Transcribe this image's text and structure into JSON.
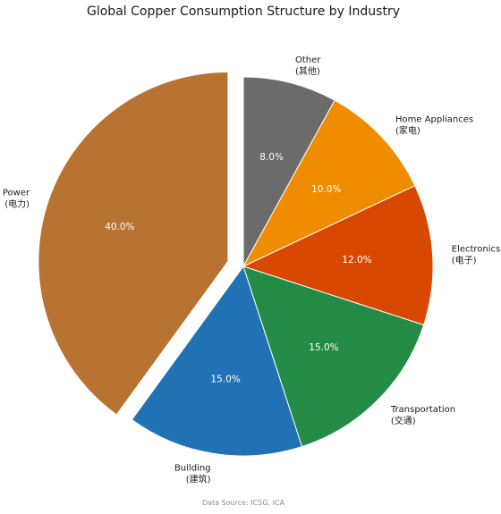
{
  "chart_data": {
    "type": "pie",
    "title": "Global Copper Consumption Structure by Industry",
    "source": "Data Source: ICSG, ICA",
    "slices": [
      {
        "label": "Other",
        "sublabel": "(其他)",
        "value": 8.0,
        "pct_label": "8.0%",
        "color": "#6b6b6b",
        "exploded": false
      },
      {
        "label": "Home Appliances",
        "sublabel": "(家电)",
        "value": 10.0,
        "pct_label": "10.0%",
        "color": "#ef8c00",
        "exploded": false
      },
      {
        "label": "Electronics",
        "sublabel": "(电子)",
        "value": 12.0,
        "pct_label": "12.0%",
        "color": "#d94801",
        "exploded": false
      },
      {
        "label": "Transportation",
        "sublabel": "(交通)",
        "value": 15.0,
        "pct_label": "15.0%",
        "color": "#238b45",
        "exploded": false
      },
      {
        "label": "Building",
        "sublabel": "(建筑)",
        "value": 15.0,
        "pct_label": "15.0%",
        "color": "#2171b5",
        "exploded": false
      },
      {
        "label": "Power",
        "sublabel": "(电力)",
        "value": 40.0,
        "pct_label": "40.0%",
        "color": "#b87333",
        "exploded": true
      }
    ]
  }
}
